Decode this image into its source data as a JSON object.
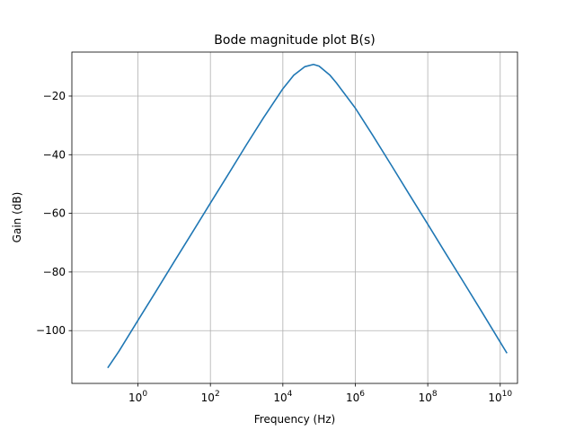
{
  "chart_data": {
    "type": "line",
    "title": "Bode magnitude plot B(s)",
    "xlabel": "Frequency (Hz)",
    "ylabel": "Gain (dB)",
    "x_scale": "log",
    "grid": true,
    "xlim": [
      0.015,
      30000000000
    ],
    "ylim": [
      -118,
      -5
    ],
    "x_ticks": [
      {
        "value": 1,
        "base": "10",
        "exp": "0"
      },
      {
        "value": 100,
        "base": "10",
        "exp": "2"
      },
      {
        "value": 10000,
        "base": "10",
        "exp": "4"
      },
      {
        "value": 1000000,
        "base": "10",
        "exp": "6"
      },
      {
        "value": 100000000,
        "base": "10",
        "exp": "8"
      },
      {
        "value": 10000000000,
        "base": "10",
        "exp": "10"
      }
    ],
    "y_ticks": [
      {
        "value": -20,
        "label": "−20"
      },
      {
        "value": -40,
        "label": "−40"
      },
      {
        "value": -60,
        "label": "−60"
      },
      {
        "value": -80,
        "label": "−80"
      },
      {
        "value": -100,
        "label": "−100"
      }
    ],
    "color": "#1f77b4",
    "series": [
      {
        "x": [
          0.15,
          0.3,
          1,
          3,
          10,
          30,
          100,
          300,
          1000,
          3000,
          10000,
          20000,
          40000,
          70000,
          100000,
          200000,
          300000,
          1000000,
          3000000,
          10000000,
          30000000,
          100000000,
          300000000,
          1000000000,
          3000000000,
          15000000000
        ],
        "y": [
          -112.5,
          -107,
          -96.5,
          -87,
          -76.5,
          -67,
          -56.5,
          -47,
          -36.5,
          -27.2,
          -17.5,
          -12.9,
          -10.0,
          -9.2,
          -9.8,
          -12.9,
          -15.5,
          -24.1,
          -33.3,
          -43.7,
          -53.3,
          -63.7,
          -73.3,
          -83.7,
          -93.3,
          -107.5
        ]
      }
    ]
  }
}
